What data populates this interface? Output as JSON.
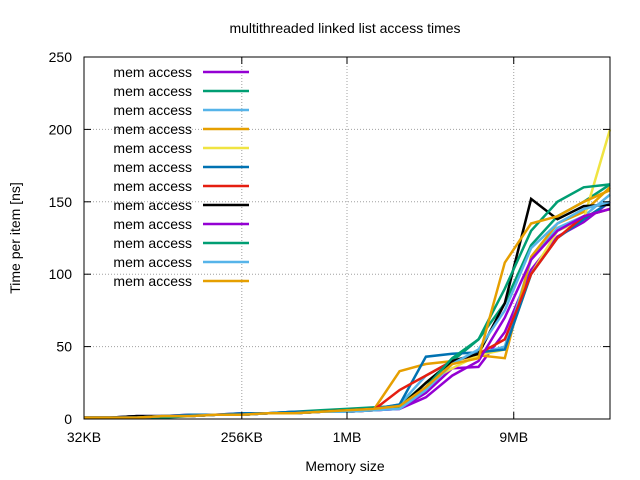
{
  "chart_data": {
    "type": "line",
    "title": "multithreaded linked list access times",
    "xlabel": "Memory size",
    "ylabel": "Time per item [ns]",
    "x_scale": "log2",
    "x_unit": "KB",
    "xlim": [
      32,
      32768
    ],
    "ylim": [
      0,
      250
    ],
    "x_ticks": [
      {
        "value": 32,
        "label": "32KB"
      },
      {
        "value": 256,
        "label": "256KB"
      },
      {
        "value": 1024,
        "label": "1MB"
      },
      {
        "value": 9216,
        "label": "9MB"
      }
    ],
    "y_ticks": [
      0,
      50,
      100,
      150,
      200,
      250
    ],
    "grid": true,
    "legend_position": "top-left",
    "x": [
      32,
      45,
      64,
      90,
      128,
      181,
      256,
      362,
      512,
      724,
      1024,
      1448,
      2048,
      2896,
      4096,
      5793,
      8192,
      11585,
      16384,
      23170,
      32768
    ],
    "series": [
      {
        "name": "mem access",
        "color": "#9400d3",
        "values": [
          1,
          1,
          2,
          2,
          3,
          3,
          4,
          4,
          5,
          5,
          5,
          6,
          7,
          18,
          35,
          36,
          60,
          103,
          126,
          136,
          150
        ]
      },
      {
        "name": "mem access",
        "color": "#009e73",
        "values": [
          1,
          1,
          1,
          1,
          2,
          3,
          3,
          4,
          5,
          6,
          7,
          8,
          9,
          25,
          40,
          55,
          80,
          120,
          140,
          150,
          162
        ]
      },
      {
        "name": "mem access",
        "color": "#56b4e9",
        "values": [
          1,
          1,
          1,
          2,
          2,
          3,
          3,
          4,
          4,
          5,
          6,
          7,
          10,
          30,
          40,
          45,
          50,
          110,
          132,
          140,
          155
        ]
      },
      {
        "name": "mem access",
        "color": "#e69f00",
        "values": [
          1,
          1,
          1,
          2,
          2,
          3,
          3,
          4,
          4,
          5,
          6,
          6,
          33,
          38,
          40,
          44,
          42,
          112,
          135,
          143,
          160
        ]
      },
      {
        "name": "mem access",
        "color": "#f0e442",
        "values": [
          1,
          1,
          1,
          2,
          2,
          3,
          3,
          4,
          4,
          5,
          5,
          6,
          8,
          25,
          35,
          44,
          48,
          100,
          130,
          138,
          200
        ]
      },
      {
        "name": "mem access",
        "color": "#0072b2",
        "values": [
          1,
          1,
          2,
          2,
          3,
          3,
          4,
          4,
          5,
          5,
          6,
          7,
          10,
          43,
          45,
          46,
          48,
          100,
          125,
          138,
          150
        ]
      },
      {
        "name": "mem access",
        "color": "#e51e10",
        "values": [
          1,
          1,
          1,
          2,
          2,
          3,
          3,
          4,
          4,
          5,
          5,
          6,
          20,
          30,
          40,
          45,
          55,
          100,
          125,
          140,
          145
        ]
      },
      {
        "name": "mem access",
        "color": "#000000",
        "values": [
          1,
          1,
          2,
          2,
          2,
          3,
          3,
          4,
          4,
          5,
          6,
          7,
          8,
          25,
          40,
          45,
          80,
          152,
          138,
          147,
          148
        ]
      },
      {
        "name": "mem access",
        "color": "#9400d3",
        "values": [
          1,
          1,
          1,
          2,
          2,
          3,
          3,
          4,
          4,
          5,
          5,
          6,
          7,
          15,
          30,
          40,
          70,
          110,
          130,
          140,
          145
        ]
      },
      {
        "name": "mem access",
        "color": "#009e73",
        "values": [
          1,
          1,
          1,
          2,
          2,
          3,
          3,
          4,
          4,
          5,
          5,
          6,
          8,
          22,
          42,
          55,
          90,
          130,
          150,
          160,
          162
        ]
      },
      {
        "name": "mem access",
        "color": "#56b4e9",
        "values": [
          1,
          1,
          1,
          2,
          2,
          3,
          3,
          4,
          4,
          5,
          5,
          6,
          7,
          20,
          38,
          48,
          75,
          118,
          135,
          145,
          150
        ]
      },
      {
        "name": "mem access",
        "color": "#e69f00",
        "values": [
          1,
          1,
          1,
          2,
          2,
          3,
          3,
          4,
          4,
          5,
          6,
          7,
          9,
          22,
          38,
          42,
          108,
          135,
          140,
          150,
          158
        ]
      }
    ]
  }
}
